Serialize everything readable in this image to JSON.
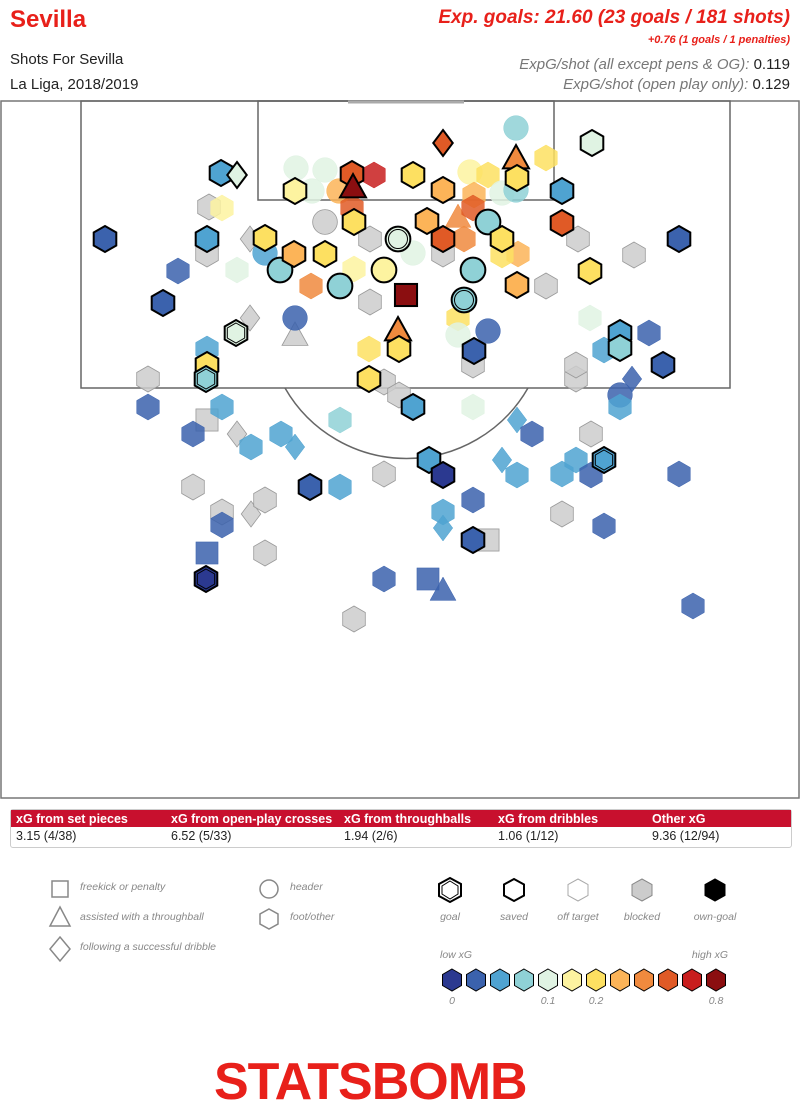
{
  "header": {
    "team": "Sevilla",
    "subtitle": "Shots For Sevilla",
    "competition": "La Liga, 2018/2019",
    "xg_title": "Exp. goals: 21.60 (23 goals / 181 shots)",
    "xg_extra": "+0.76 (1 goals / 1 penalties)",
    "per_shot_all_label": "ExpG/shot (all except pens & OG):",
    "per_shot_all_value": "0.119",
    "per_shot_open_label": "ExpG/shot (open play only):",
    "per_shot_open_value": "0.129"
  },
  "table": {
    "headers": [
      "xG from set pieces",
      "xG from open-play crosses",
      "xG from throughballs",
      "xG from dribbles",
      "Other xG"
    ],
    "values": [
      "3.15 (4/38)",
      "6.52 (5/33)",
      "1.94 (2/6)",
      "1.06 (1/12)",
      "9.36 (12/94)"
    ]
  },
  "legend": {
    "shapes": [
      "freekick or penalty",
      "assisted with a throughball",
      "following a successful dribble",
      "header",
      "foot/other"
    ],
    "outcomes": [
      "goal",
      "saved",
      "off target",
      "blocked",
      "own-goal"
    ],
    "low_label": "low xG",
    "high_label": "high xG",
    "ticks": [
      "0",
      "0.1",
      "0.2",
      "0.8"
    ]
  },
  "colors": {
    "accent": "#e8201a",
    "scale": [
      "#2b3990",
      "#3b62ad",
      "#4fa3d1",
      "#8fd1d6",
      "#e0f3e3",
      "#fdf3a0",
      "#fde061",
      "#fcb458",
      "#f08a3e",
      "#e05a26",
      "#c81e1e",
      "#8b0e10"
    ],
    "blocked": "#cccccc"
  },
  "logo": {
    "text": "STATSBOMB"
  },
  "chart_data": {
    "type": "scatter",
    "x_range": [
      0,
      800
    ],
    "y_range": [
      0,
      700
    ],
    "shots": [
      {
        "x": 516,
        "y": 28,
        "c": 3,
        "s": "circle",
        "o": "off"
      },
      {
        "x": 592,
        "y": 43,
        "c": 4,
        "s": "hex",
        "o": "saved"
      },
      {
        "x": 443,
        "y": 43,
        "c": 9,
        "s": "diamond",
        "o": "saved"
      },
      {
        "x": 546,
        "y": 58,
        "c": 6,
        "s": "hex",
        "o": "off"
      },
      {
        "x": 221,
        "y": 73,
        "c": 2,
        "s": "hex",
        "o": "saved"
      },
      {
        "x": 237,
        "y": 75,
        "c": 4,
        "s": "diamond",
        "o": "saved"
      },
      {
        "x": 296,
        "y": 68,
        "c": 4,
        "s": "circle",
        "o": "off"
      },
      {
        "x": 325,
        "y": 70,
        "c": 4,
        "s": "circle",
        "o": "off"
      },
      {
        "x": 352,
        "y": 74,
        "c": 9,
        "s": "hex",
        "o": "saved"
      },
      {
        "x": 374,
        "y": 75,
        "c": 10,
        "s": "hex",
        "o": "off"
      },
      {
        "x": 413,
        "y": 75,
        "c": 6,
        "s": "hex",
        "o": "saved"
      },
      {
        "x": 470,
        "y": 72,
        "c": 5,
        "s": "circle",
        "o": "off"
      },
      {
        "x": 488,
        "y": 75,
        "c": 6,
        "s": "hex",
        "o": "off"
      },
      {
        "x": 516,
        "y": 58,
        "c": 8,
        "s": "triangle",
        "o": "saved"
      },
      {
        "x": 517,
        "y": 78,
        "c": 6,
        "s": "hex",
        "o": "saved"
      },
      {
        "x": 353,
        "y": 87,
        "c": 11,
        "s": "triangle",
        "o": "saved"
      },
      {
        "x": 295,
        "y": 91,
        "c": 5,
        "s": "hex",
        "o": "saved"
      },
      {
        "x": 312,
        "y": 91,
        "c": 4,
        "s": "circle",
        "o": "off"
      },
      {
        "x": 339,
        "y": 91,
        "c": 7,
        "s": "circle",
        "o": "off"
      },
      {
        "x": 443,
        "y": 90,
        "c": 7,
        "s": "hex",
        "o": "saved"
      },
      {
        "x": 474,
        "y": 95,
        "c": 7,
        "s": "hex",
        "o": "off"
      },
      {
        "x": 502,
        "y": 93,
        "c": 4,
        "s": "circle",
        "o": "off"
      },
      {
        "x": 562,
        "y": 91,
        "c": 2,
        "s": "hex",
        "o": "saved"
      },
      {
        "x": 516,
        "y": 90,
        "c": 3,
        "s": "circle",
        "o": "off"
      },
      {
        "x": 209,
        "y": 107,
        "c": -1,
        "s": "hex",
        "o": "blocked"
      },
      {
        "x": 222,
        "y": 108,
        "c": 5,
        "s": "hex",
        "o": "off"
      },
      {
        "x": 354,
        "y": 122,
        "c": 6,
        "s": "hex",
        "o": "saved"
      },
      {
        "x": 325,
        "y": 122,
        "c": -1,
        "s": "circle",
        "o": "blocked"
      },
      {
        "x": 352,
        "y": 108,
        "c": 9,
        "s": "hex",
        "o": "off"
      },
      {
        "x": 427,
        "y": 121,
        "c": 7,
        "s": "hex",
        "o": "saved"
      },
      {
        "x": 458,
        "y": 117,
        "c": 8,
        "s": "triangle",
        "o": "off"
      },
      {
        "x": 473,
        "y": 108,
        "c": 9,
        "s": "hex",
        "o": "off"
      },
      {
        "x": 488,
        "y": 122,
        "c": 3,
        "s": "circle",
        "o": "saved"
      },
      {
        "x": 562,
        "y": 123,
        "c": 9,
        "s": "hex",
        "o": "saved"
      },
      {
        "x": 105,
        "y": 139,
        "c": 1,
        "s": "hex",
        "o": "saved"
      },
      {
        "x": 207,
        "y": 139,
        "c": 2,
        "s": "hex",
        "o": "saved"
      },
      {
        "x": 265,
        "y": 138,
        "c": 6,
        "s": "hex",
        "o": "saved"
      },
      {
        "x": 250,
        "y": 139,
        "c": -1,
        "s": "diamond",
        "o": "blocked"
      },
      {
        "x": 370,
        "y": 139,
        "c": -1,
        "s": "hex",
        "o": "blocked"
      },
      {
        "x": 398,
        "y": 139,
        "c": 4,
        "s": "circle",
        "o": "goal"
      },
      {
        "x": 443,
        "y": 139,
        "c": 9,
        "s": "hex",
        "o": "saved"
      },
      {
        "x": 464,
        "y": 139,
        "c": 8,
        "s": "hex",
        "o": "off"
      },
      {
        "x": 502,
        "y": 139,
        "c": 6,
        "s": "hex",
        "o": "saved"
      },
      {
        "x": 518,
        "y": 154,
        "c": 7,
        "s": "hex",
        "o": "off"
      },
      {
        "x": 578,
        "y": 139,
        "c": -1,
        "s": "hex",
        "o": "blocked"
      },
      {
        "x": 679,
        "y": 139,
        "c": 1,
        "s": "hex",
        "o": "saved"
      },
      {
        "x": 207,
        "y": 154,
        "c": -1,
        "s": "hex",
        "o": "blocked"
      },
      {
        "x": 265,
        "y": 153,
        "c": 2,
        "s": "circle",
        "o": "off"
      },
      {
        "x": 280,
        "y": 170,
        "c": 3,
        "s": "circle",
        "o": "saved"
      },
      {
        "x": 294,
        "y": 154,
        "c": 7,
        "s": "hex",
        "o": "saved"
      },
      {
        "x": 325,
        "y": 154,
        "c": 6,
        "s": "hex",
        "o": "saved"
      },
      {
        "x": 354,
        "y": 169,
        "c": 5,
        "s": "hex",
        "o": "off"
      },
      {
        "x": 384,
        "y": 170,
        "c": 5,
        "s": "circle",
        "o": "saved"
      },
      {
        "x": 413,
        "y": 153,
        "c": 4,
        "s": "circle",
        "o": "off"
      },
      {
        "x": 443,
        "y": 154,
        "c": -1,
        "s": "hex",
        "o": "blocked"
      },
      {
        "x": 473,
        "y": 170,
        "c": 3,
        "s": "circle",
        "o": "saved"
      },
      {
        "x": 502,
        "y": 155,
        "c": 6,
        "s": "hex",
        "o": "off"
      },
      {
        "x": 517,
        "y": 185,
        "c": 7,
        "s": "hex",
        "o": "saved"
      },
      {
        "x": 546,
        "y": 186,
        "c": -1,
        "s": "hex",
        "o": "blocked"
      },
      {
        "x": 590,
        "y": 171,
        "c": 6,
        "s": "hex",
        "o": "saved"
      },
      {
        "x": 634,
        "y": 155,
        "c": -1,
        "s": "hex",
        "o": "blocked"
      },
      {
        "x": 178,
        "y": 171,
        "c": 1,
        "s": "hex",
        "o": "off"
      },
      {
        "x": 237,
        "y": 170,
        "c": 4,
        "s": "hex",
        "o": "off"
      },
      {
        "x": 311,
        "y": 186,
        "c": 8,
        "s": "hex",
        "o": "off"
      },
      {
        "x": 340,
        "y": 186,
        "c": 3,
        "s": "circle",
        "o": "saved"
      },
      {
        "x": 406,
        "y": 195,
        "c": 11,
        "s": "square",
        "o": "saved"
      },
      {
        "x": 163,
        "y": 203,
        "c": 1,
        "s": "hex",
        "o": "saved"
      },
      {
        "x": 250,
        "y": 218,
        "c": -1,
        "s": "diamond",
        "o": "blocked"
      },
      {
        "x": 236,
        "y": 233,
        "c": 4,
        "s": "hex",
        "o": "goal"
      },
      {
        "x": 295,
        "y": 218,
        "c": 1,
        "s": "circle",
        "o": "off"
      },
      {
        "x": 370,
        "y": 202,
        "c": -1,
        "s": "hex",
        "o": "blocked"
      },
      {
        "x": 458,
        "y": 218,
        "c": 6,
        "s": "hex",
        "o": "off"
      },
      {
        "x": 464,
        "y": 200,
        "c": 3,
        "s": "circle",
        "o": "goal"
      },
      {
        "x": 488,
        "y": 231,
        "c": 1,
        "s": "circle",
        "o": "off"
      },
      {
        "x": 590,
        "y": 218,
        "c": 4,
        "s": "hex",
        "o": "off"
      },
      {
        "x": 620,
        "y": 233,
        "c": 2,
        "s": "hex",
        "o": "saved"
      },
      {
        "x": 649,
        "y": 233,
        "c": 1,
        "s": "hex",
        "o": "off"
      },
      {
        "x": 295,
        "y": 235,
        "c": -1,
        "s": "triangle",
        "o": "blocked"
      },
      {
        "x": 398,
        "y": 230,
        "c": 8,
        "s": "triangle",
        "o": "saved"
      },
      {
        "x": 369,
        "y": 249,
        "c": 6,
        "s": "hex",
        "o": "off"
      },
      {
        "x": 399,
        "y": 249,
        "c": 6,
        "s": "hex",
        "o": "saved"
      },
      {
        "x": 458,
        "y": 235,
        "c": 4,
        "s": "circle",
        "o": "off"
      },
      {
        "x": 474,
        "y": 251,
        "c": 1,
        "s": "hex",
        "o": "saved"
      },
      {
        "x": 604,
        "y": 250,
        "c": 2,
        "s": "hex",
        "o": "off"
      },
      {
        "x": 620,
        "y": 248,
        "c": 3,
        "s": "hex",
        "o": "saved"
      },
      {
        "x": 663,
        "y": 265,
        "c": 1,
        "s": "hex",
        "o": "saved"
      },
      {
        "x": 207,
        "y": 249,
        "c": 2,
        "s": "hex",
        "o": "off"
      },
      {
        "x": 207,
        "y": 265,
        "c": 6,
        "s": "hex",
        "o": "saved"
      },
      {
        "x": 206,
        "y": 279,
        "c": 3,
        "s": "hex",
        "o": "goal"
      },
      {
        "x": 148,
        "y": 279,
        "c": -1,
        "s": "hex",
        "o": "blocked"
      },
      {
        "x": 369,
        "y": 279,
        "c": 6,
        "s": "hex",
        "o": "saved"
      },
      {
        "x": 384,
        "y": 282,
        "c": -1,
        "s": "hex",
        "o": "blocked"
      },
      {
        "x": 399,
        "y": 295,
        "c": -1,
        "s": "hex",
        "o": "blocked"
      },
      {
        "x": 473,
        "y": 265,
        "c": -1,
        "s": "hex",
        "o": "blocked"
      },
      {
        "x": 576,
        "y": 279,
        "c": -1,
        "s": "hex",
        "o": "blocked"
      },
      {
        "x": 576,
        "y": 265,
        "c": -1,
        "s": "hex",
        "o": "blocked"
      },
      {
        "x": 620,
        "y": 295,
        "c": 1,
        "s": "circle",
        "o": "off"
      },
      {
        "x": 632,
        "y": 279,
        "c": 1,
        "s": "diamond",
        "o": "off"
      },
      {
        "x": 148,
        "y": 307,
        "c": 1,
        "s": "hex",
        "o": "off"
      },
      {
        "x": 207,
        "y": 320,
        "c": -1,
        "s": "square",
        "o": "blocked"
      },
      {
        "x": 222,
        "y": 307,
        "c": 2,
        "s": "hex",
        "o": "off"
      },
      {
        "x": 237,
        "y": 334,
        "c": -1,
        "s": "diamond",
        "o": "blocked"
      },
      {
        "x": 281,
        "y": 334,
        "c": 2,
        "s": "hex",
        "o": "off"
      },
      {
        "x": 295,
        "y": 347,
        "c": 2,
        "s": "diamond",
        "o": "off"
      },
      {
        "x": 251,
        "y": 347,
        "c": 2,
        "s": "hex",
        "o": "off"
      },
      {
        "x": 340,
        "y": 320,
        "c": 3,
        "s": "hex",
        "o": "off"
      },
      {
        "x": 413,
        "y": 307,
        "c": 2,
        "s": "hex",
        "o": "saved"
      },
      {
        "x": 473,
        "y": 307,
        "c": 4,
        "s": "hex",
        "o": "off"
      },
      {
        "x": 517,
        "y": 320,
        "c": 2,
        "s": "diamond",
        "o": "off"
      },
      {
        "x": 532,
        "y": 334,
        "c": 1,
        "s": "hex",
        "o": "off"
      },
      {
        "x": 591,
        "y": 334,
        "c": -1,
        "s": "hex",
        "o": "blocked"
      },
      {
        "x": 620,
        "y": 307,
        "c": 2,
        "s": "hex",
        "o": "off"
      },
      {
        "x": 193,
        "y": 334,
        "c": 1,
        "s": "hex",
        "o": "off"
      },
      {
        "x": 429,
        "y": 360,
        "c": 2,
        "s": "hex",
        "o": "saved"
      },
      {
        "x": 443,
        "y": 375,
        "c": 0,
        "s": "hex",
        "o": "saved"
      },
      {
        "x": 384,
        "y": 374,
        "c": -1,
        "s": "hex",
        "o": "blocked"
      },
      {
        "x": 502,
        "y": 360,
        "c": 2,
        "s": "diamond",
        "o": "off"
      },
      {
        "x": 517,
        "y": 375,
        "c": 2,
        "s": "hex",
        "o": "off"
      },
      {
        "x": 562,
        "y": 374,
        "c": 2,
        "s": "hex",
        "o": "off"
      },
      {
        "x": 576,
        "y": 360,
        "c": 2,
        "s": "hex",
        "o": "off"
      },
      {
        "x": 604,
        "y": 360,
        "c": 2,
        "s": "hex",
        "o": "goal"
      },
      {
        "x": 591,
        "y": 375,
        "c": 1,
        "s": "hex",
        "o": "off"
      },
      {
        "x": 679,
        "y": 374,
        "c": 1,
        "s": "hex",
        "o": "off"
      },
      {
        "x": 193,
        "y": 387,
        "c": -1,
        "s": "hex",
        "o": "blocked"
      },
      {
        "x": 310,
        "y": 387,
        "c": 1,
        "s": "hex",
        "o": "saved"
      },
      {
        "x": 340,
        "y": 387,
        "c": 2,
        "s": "hex",
        "o": "off"
      },
      {
        "x": 473,
        "y": 400,
        "c": 1,
        "s": "hex",
        "o": "off"
      },
      {
        "x": 222,
        "y": 412,
        "c": -1,
        "s": "hex",
        "o": "blocked"
      },
      {
        "x": 251,
        "y": 414,
        "c": -1,
        "s": "diamond",
        "o": "blocked"
      },
      {
        "x": 265,
        "y": 400,
        "c": -1,
        "s": "hex",
        "o": "blocked"
      },
      {
        "x": 222,
        "y": 425,
        "c": 1,
        "s": "hex",
        "o": "off"
      },
      {
        "x": 443,
        "y": 412,
        "c": 2,
        "s": "hex",
        "o": "off"
      },
      {
        "x": 443,
        "y": 428,
        "c": 2,
        "s": "diamond",
        "o": "off"
      },
      {
        "x": 488,
        "y": 440,
        "c": -1,
        "s": "square",
        "o": "blocked"
      },
      {
        "x": 473,
        "y": 440,
        "c": 1,
        "s": "hex",
        "o": "saved"
      },
      {
        "x": 562,
        "y": 414,
        "c": -1,
        "s": "hex",
        "o": "blocked"
      },
      {
        "x": 604,
        "y": 426,
        "c": 1,
        "s": "hex",
        "o": "off"
      },
      {
        "x": 207,
        "y": 453,
        "c": 1,
        "s": "square",
        "o": "off"
      },
      {
        "x": 265,
        "y": 453,
        "c": -1,
        "s": "hex",
        "o": "blocked"
      },
      {
        "x": 206,
        "y": 479,
        "c": 0,
        "s": "hex",
        "o": "goal"
      },
      {
        "x": 384,
        "y": 479,
        "c": 1,
        "s": "hex",
        "o": "off"
      },
      {
        "x": 428,
        "y": 479,
        "c": 1,
        "s": "square",
        "o": "off"
      },
      {
        "x": 443,
        "y": 490,
        "c": 1,
        "s": "triangle",
        "o": "off"
      },
      {
        "x": 693,
        "y": 506,
        "c": 1,
        "s": "hex",
        "o": "off"
      },
      {
        "x": 354,
        "y": 519,
        "c": -1,
        "s": "hex",
        "o": "blocked"
      }
    ]
  }
}
